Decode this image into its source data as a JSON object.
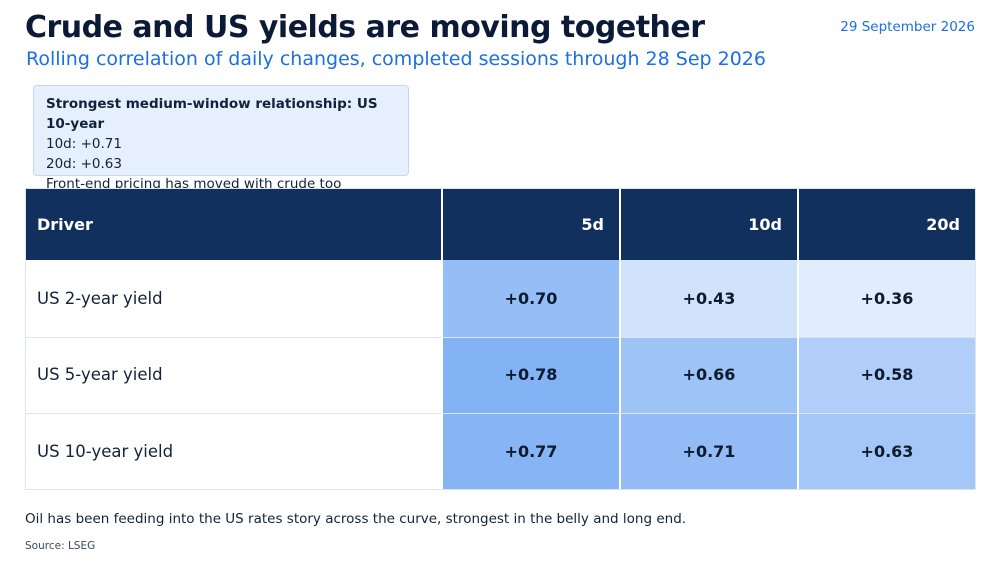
{
  "header": {
    "title": "Crude and US yields are moving together",
    "subtitle": "Rolling correlation of daily changes, completed sessions through 28 Sep 2026",
    "date": "29 September 2026"
  },
  "callout": {
    "heading": "Strongest medium-window relationship: US 10-year",
    "lines": [
      "10d: +0.71",
      "20d: +0.63",
      "Front-end pricing has moved with crude too"
    ]
  },
  "chart_data": {
    "type": "heatmap",
    "title": "Crude and US yields are moving together",
    "subtitle": "Rolling correlation of daily changes, completed sessions through 28 Sep 2026",
    "row_header": "Driver",
    "columns": [
      "5d",
      "10d",
      "20d"
    ],
    "rows": [
      {
        "driver": "US 2-year yield",
        "values": [
          0.7,
          0.43,
          0.36
        ],
        "labels": [
          "+0.70",
          "+0.43",
          "+0.36"
        ]
      },
      {
        "driver": "US 5-year yield",
        "values": [
          0.78,
          0.66,
          0.58
        ],
        "labels": [
          "+0.78",
          "+0.66",
          "+0.58"
        ]
      },
      {
        "driver": "US 10-year yield",
        "values": [
          0.77,
          0.71,
          0.63
        ],
        "labels": [
          "+0.77",
          "+0.71",
          "+0.63"
        ]
      }
    ],
    "color_scale": {
      "low": "#eef4fd",
      "high": "#7fb0f5",
      "domain": [
        0.3,
        0.8
      ]
    }
  },
  "footer": {
    "note": "Oil has been feeding into the US rates story across the curve, strongest in the belly and long end.",
    "source": "Source: LSEG"
  }
}
